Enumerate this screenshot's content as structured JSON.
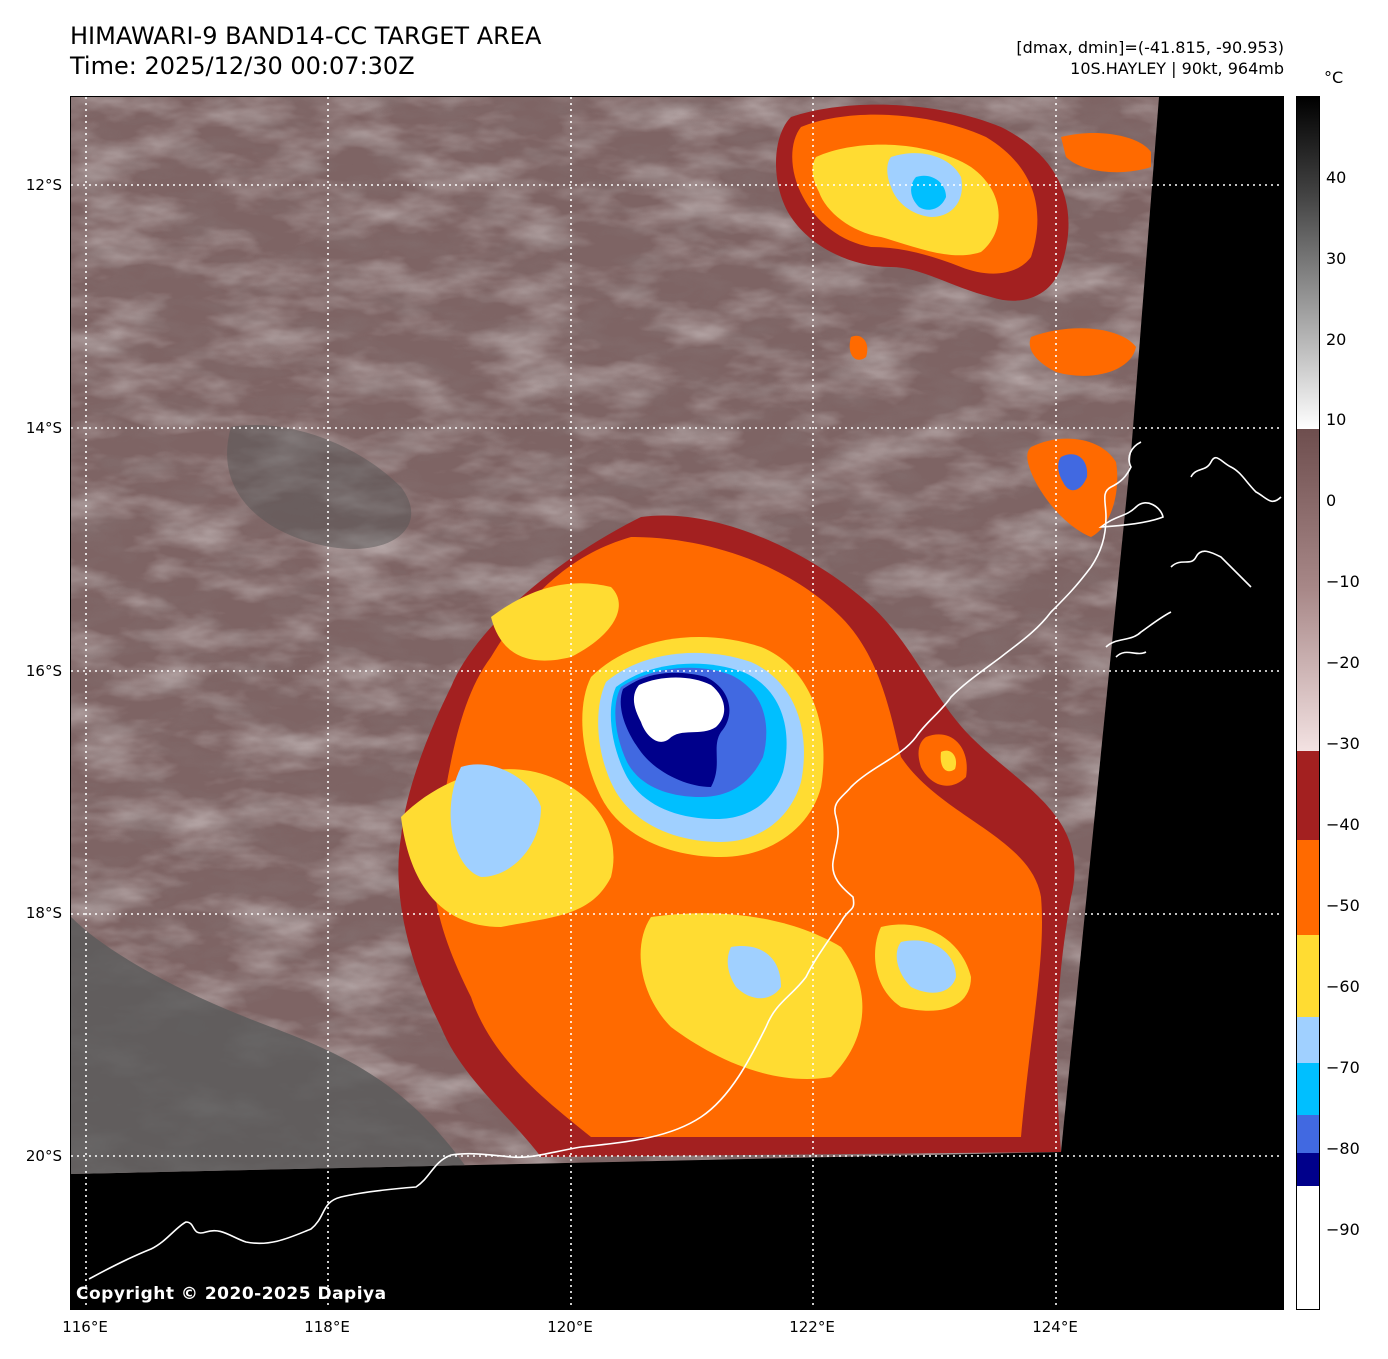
{
  "header": {
    "title_line1": "HIMAWARI-9 BAND14-CC TARGET AREA",
    "title_line2": "Time: 2025/12/30 00:07:30Z",
    "range_text": "[dmax, dmin]=(-41.815, -90.953)",
    "storm_text": "10S.HAYLEY | 90kt, 964mb"
  },
  "map": {
    "lat_labels": [
      "12°S",
      "14°S",
      "16°S",
      "18°S",
      "20°S"
    ],
    "lon_labels": [
      "116°E",
      "118°E",
      "120°E",
      "122°E",
      "124°E"
    ],
    "copyright": "Copyright © 2020-2025 Dapiya",
    "colors": {
      "no_data": "#000000",
      "warm_cloud": "#8a6a6a",
      "cold_cloud": "#e8d2d2",
      "band_-40": "#a32020",
      "band_-50": "#ff6a00",
      "band_-60": "#ffdc32",
      "band_-70": "#a0d0ff",
      "band_-75": "#00bfff",
      "band_-80": "#4169e1",
      "band_-85": "#00008b",
      "band_-90": "#ffffff",
      "coastline": "#ffffff",
      "grid": "#ffffff"
    }
  },
  "colorbar": {
    "unit": "°C",
    "tick_labels": [
      "40",
      "30",
      "20",
      "10",
      "0",
      "−10",
      "−20",
      "−30",
      "−40",
      "−50",
      "−60",
      "−70",
      "−80",
      "−90"
    ]
  }
}
